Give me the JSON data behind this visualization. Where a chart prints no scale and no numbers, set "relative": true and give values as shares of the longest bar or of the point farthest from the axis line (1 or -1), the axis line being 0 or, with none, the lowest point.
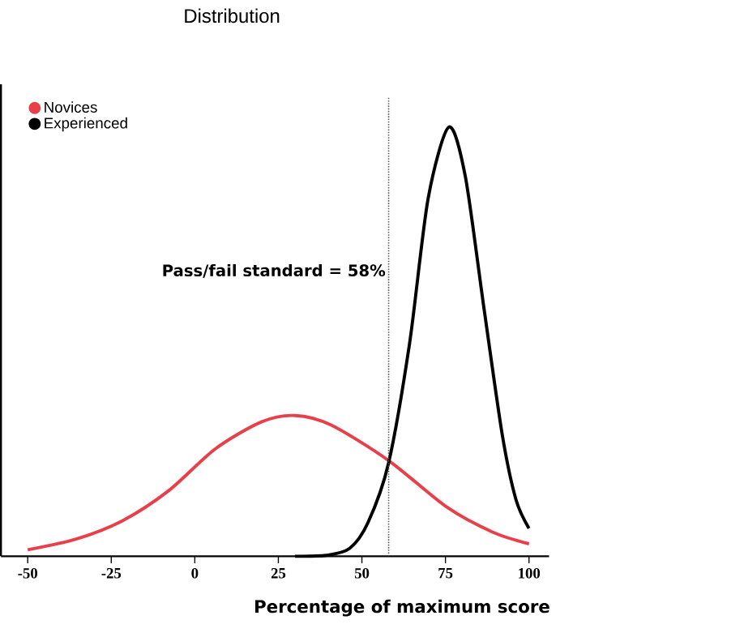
{
  "chart_data": {
    "type": "line",
    "title": "Distribution",
    "xlabel": "Percentage of maximum score",
    "relative": true,
    "xlim": [
      -58,
      106
    ],
    "xticks": [
      -50,
      -25,
      0,
      25,
      50,
      75,
      100
    ],
    "legend": "top left",
    "ref_lines": [
      {
        "axis": "x",
        "value": 58,
        "label": "Pass/fail standard = 58%",
        "color": "#555555",
        "line_style": "dotted"
      }
    ],
    "series": [
      {
        "name": "Novices",
        "color": "#e8404a",
        "x": [
          -50,
          -35.5,
          -21.6,
          -7.8,
          6.1,
          19.9,
          30,
          40.7,
          58,
          75.3,
          89.2,
          100
        ],
        "values": [
          0.015,
          0.04,
          0.083,
          0.153,
          0.25,
          0.313,
          0.328,
          0.306,
          0.223,
          0.115,
          0.056,
          0.029
        ]
      },
      {
        "name": "Experienced",
        "color": "#000000",
        "x": [
          30,
          39.3,
          46.3,
          51.8,
          58,
          64.3,
          69.8,
          76,
          80.9,
          86.4,
          92,
          96.1,
          100
        ],
        "values": [
          0,
          0.002,
          0.018,
          0.078,
          0.218,
          0.498,
          0.833,
          1,
          0.887,
          0.585,
          0.283,
          0.132,
          0.065
        ]
      }
    ]
  }
}
